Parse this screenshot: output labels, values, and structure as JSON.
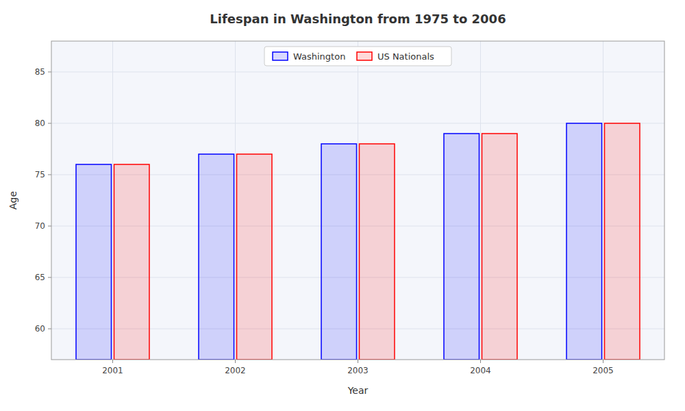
{
  "chart_data": {
    "type": "bar",
    "title": "Lifespan in Washington from 1975 to 2006",
    "x_label": "Year",
    "y_label": "Age",
    "categories": [
      "2001",
      "2002",
      "2003",
      "2004",
      "2005"
    ],
    "series": [
      {
        "name": "Washington",
        "color": "#0000ff",
        "values": [
          76,
          77,
          78,
          79,
          80
        ]
      },
      {
        "name": "US Nationals",
        "color": "#ff0000",
        "values": [
          76,
          77,
          78,
          79,
          80
        ]
      }
    ],
    "ylim": [
      57,
      88
    ],
    "yticks": [
      60,
      65,
      70,
      75,
      80,
      85
    ],
    "grid": true,
    "legend": "top"
  }
}
